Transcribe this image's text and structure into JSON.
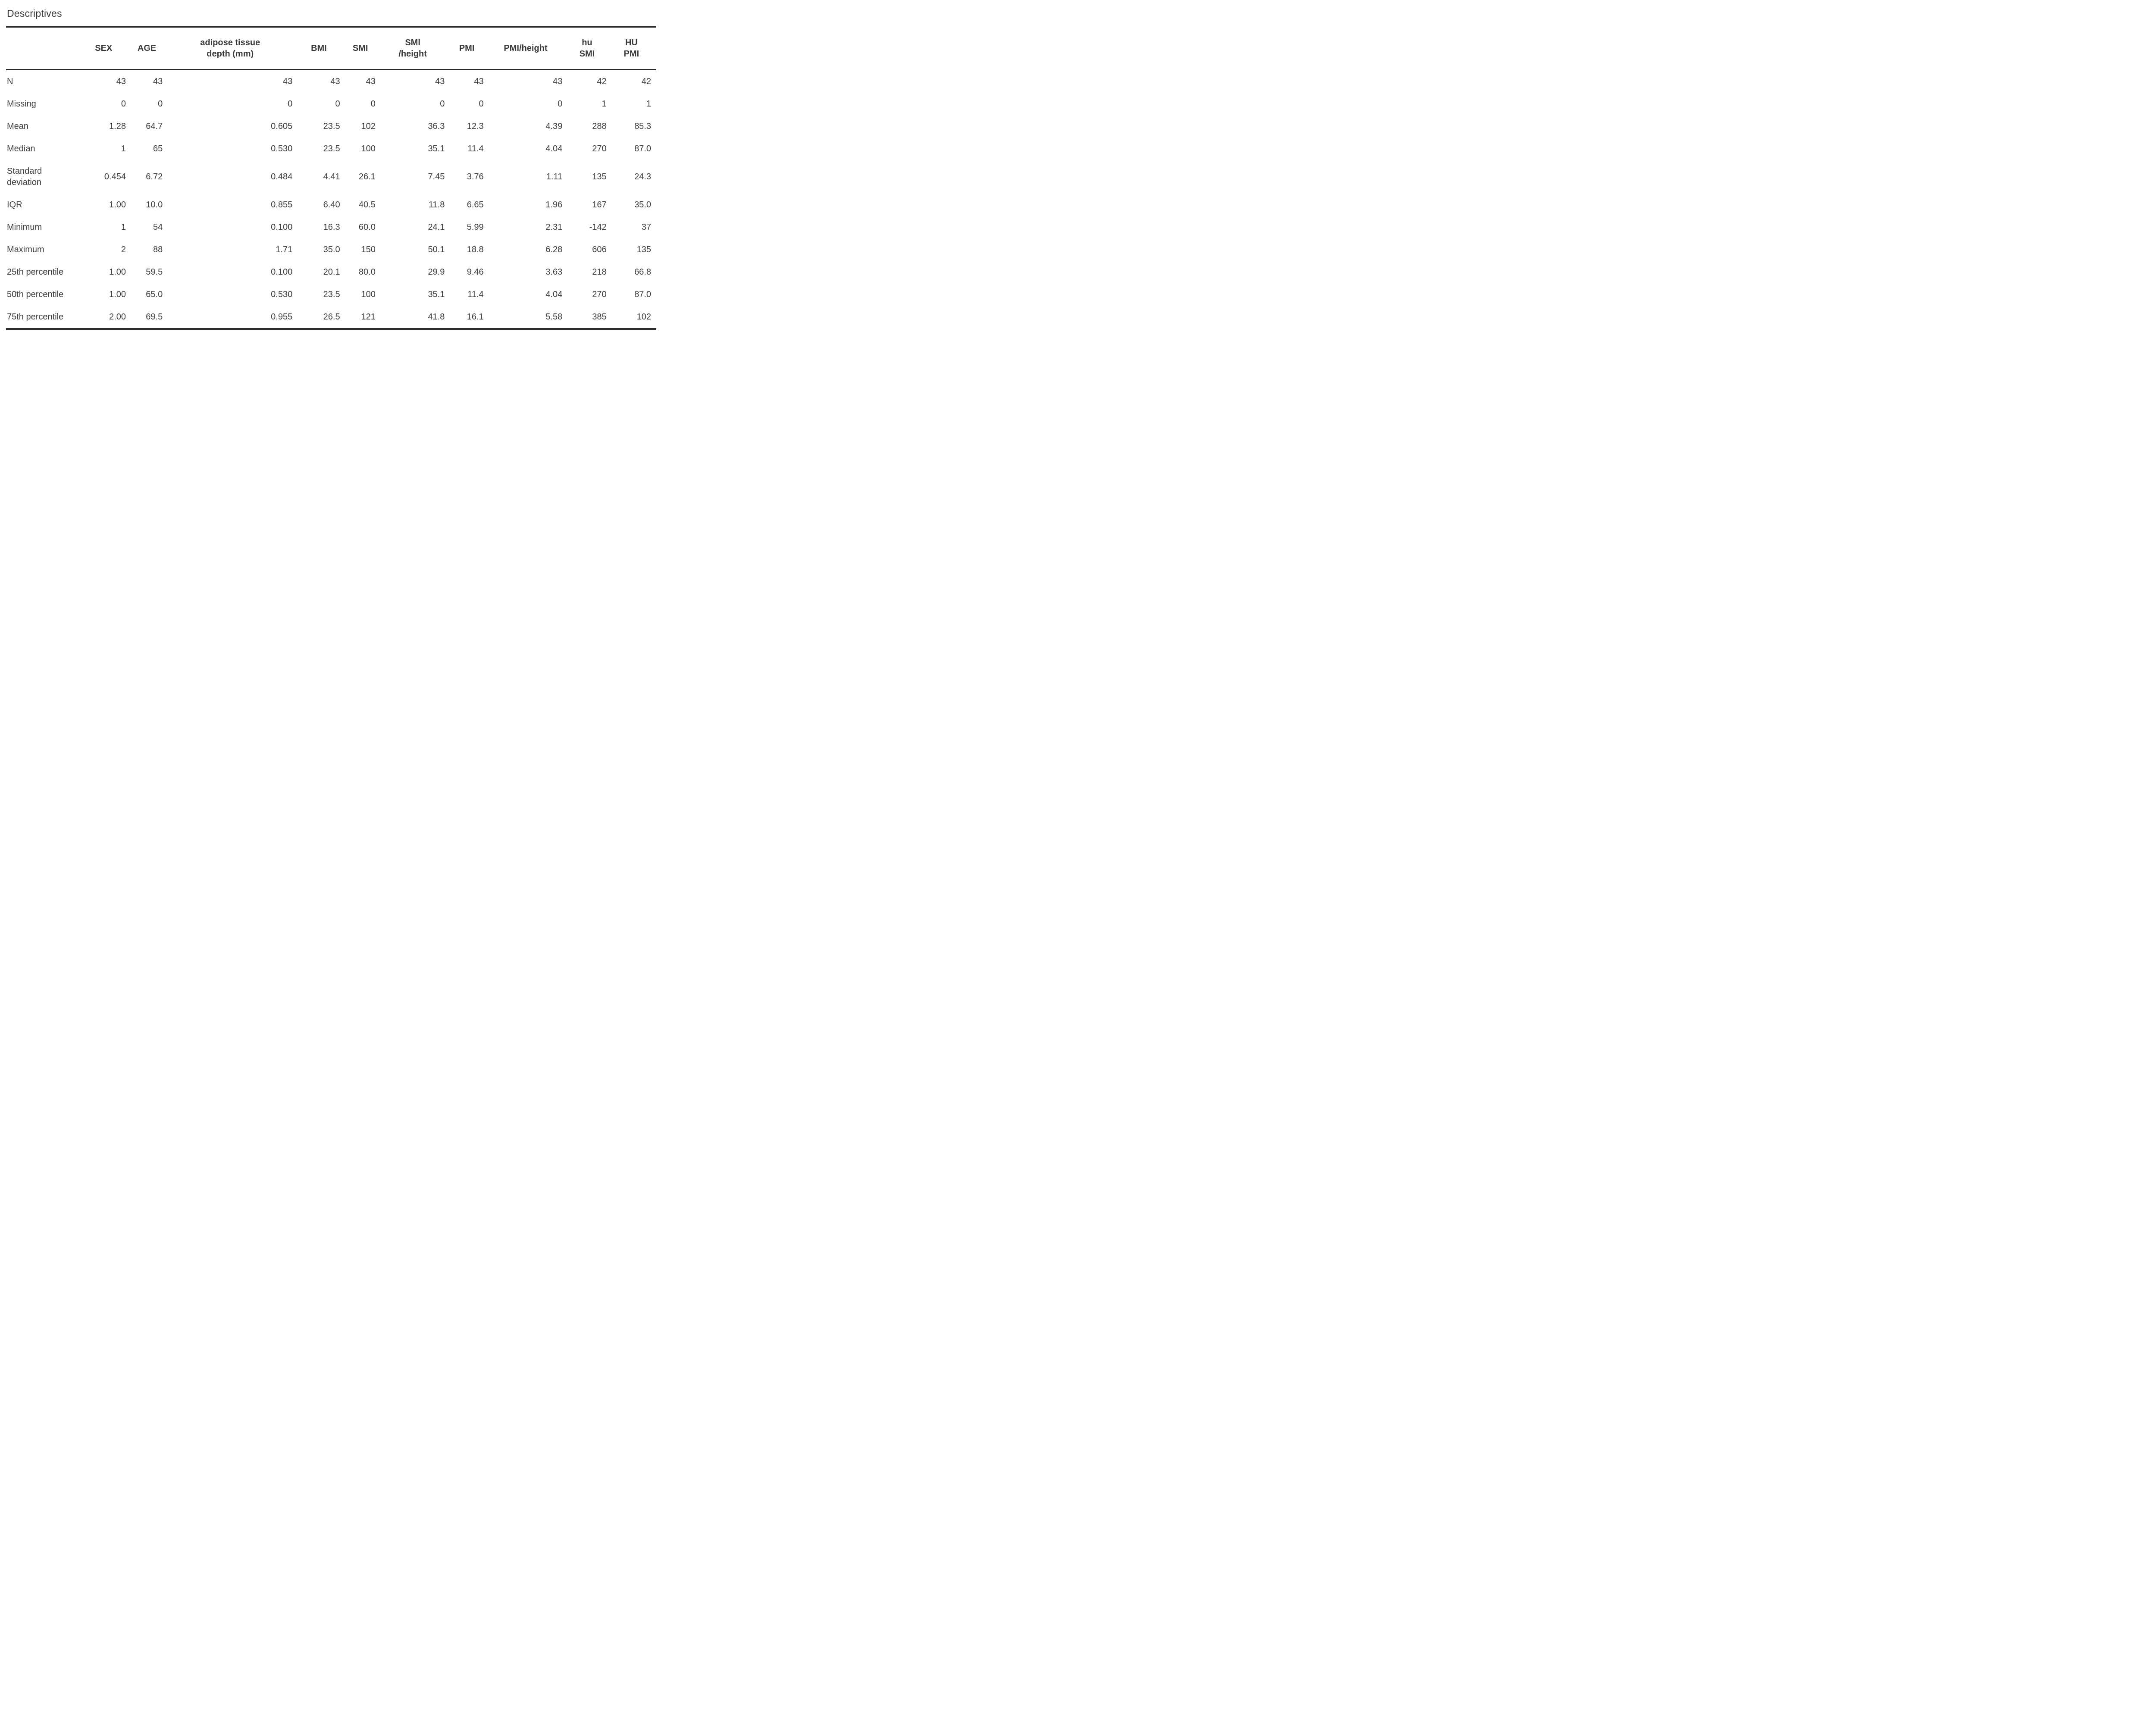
{
  "title": "Descriptives",
  "colors": {
    "background": "#ffffff",
    "text": "#3d3d3d",
    "rule": "#2d2d2d"
  },
  "table": {
    "columns": [
      {
        "label": ""
      },
      {
        "label": "SEX"
      },
      {
        "label": "AGE"
      },
      {
        "label": "adipose tissue\ndepth (mm)"
      },
      {
        "label": "BMI"
      },
      {
        "label": "SMI"
      },
      {
        "label": "SMI\n/height"
      },
      {
        "label": "PMI"
      },
      {
        "label": "PMI/height"
      },
      {
        "label": "hu\nSMI"
      },
      {
        "label": "HU\nPMI"
      }
    ],
    "rows": [
      {
        "label": "N",
        "values": [
          "43",
          "43",
          "43",
          "43",
          "43",
          "43",
          "43",
          "43",
          "42",
          "42"
        ]
      },
      {
        "label": "Missing",
        "values": [
          "0",
          "0",
          "0",
          "0",
          "0",
          "0",
          "0",
          "0",
          "1",
          "1"
        ]
      },
      {
        "label": "Mean",
        "values": [
          "1.28",
          "64.7",
          "0.605",
          "23.5",
          "102",
          "36.3",
          "12.3",
          "4.39",
          "288",
          "85.3"
        ]
      },
      {
        "label": "Median",
        "values": [
          "1",
          "65",
          "0.530",
          "23.5",
          "100",
          "35.1",
          "11.4",
          "4.04",
          "270",
          "87.0"
        ]
      },
      {
        "label": "Standard deviation",
        "values": [
          "0.454",
          "6.72",
          "0.484",
          "4.41",
          "26.1",
          "7.45",
          "3.76",
          "1.11",
          "135",
          "24.3"
        ]
      },
      {
        "label": "IQR",
        "values": [
          "1.00",
          "10.0",
          "0.855",
          "6.40",
          "40.5",
          "11.8",
          "6.65",
          "1.96",
          "167",
          "35.0"
        ]
      },
      {
        "label": "Minimum",
        "values": [
          "1",
          "54",
          "0.100",
          "16.3",
          "60.0",
          "24.1",
          "5.99",
          "2.31",
          "-142",
          "37"
        ]
      },
      {
        "label": "Maximum",
        "values": [
          "2",
          "88",
          "1.71",
          "35.0",
          "150",
          "50.1",
          "18.8",
          "6.28",
          "606",
          "135"
        ]
      },
      {
        "label": "25th percentile",
        "values": [
          "1.00",
          "59.5",
          "0.100",
          "20.1",
          "80.0",
          "29.9",
          "9.46",
          "3.63",
          "218",
          "66.8"
        ]
      },
      {
        "label": "50th percentile",
        "values": [
          "1.00",
          "65.0",
          "0.530",
          "23.5",
          "100",
          "35.1",
          "11.4",
          "4.04",
          "270",
          "87.0"
        ]
      },
      {
        "label": "75th percentile",
        "values": [
          "2.00",
          "69.5",
          "0.955",
          "26.5",
          "121",
          "41.8",
          "16.1",
          "5.58",
          "385",
          "102"
        ]
      }
    ]
  }
}
